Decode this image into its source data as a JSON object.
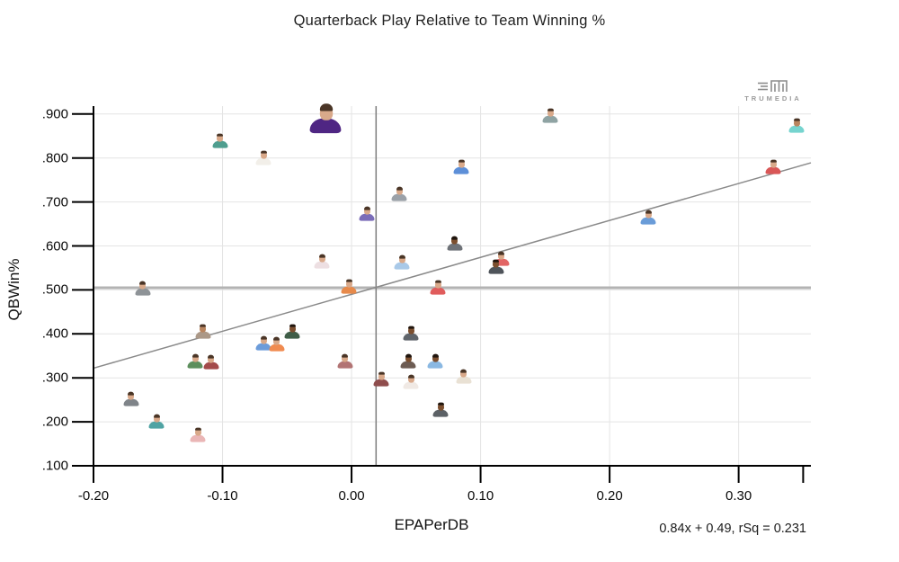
{
  "title": "Quarterback Play Relative to Team Winning %",
  "logo": {
    "text": "TRUMEDIA",
    "icon": "trumedia-mark-icon"
  },
  "chart_data": {
    "type": "scatter",
    "title": "Quarterback Play Relative to Team Winning %",
    "xlabel": "EPAPerDB",
    "ylabel": "QBWin%",
    "xlim": [
      -0.2,
      0.356
    ],
    "ylim": [
      0.1,
      0.918
    ],
    "grid": true,
    "x_ticks": [
      {
        "v": -0.2,
        "label": "-0.20"
      },
      {
        "v": -0.1,
        "label": "-0.10"
      },
      {
        "v": 0.0,
        "label": "0.00"
      },
      {
        "v": 0.1,
        "label": "0.10"
      },
      {
        "v": 0.2,
        "label": "0.20"
      },
      {
        "v": 0.3,
        "label": "0.30"
      },
      {
        "v": 0.35,
        "label": ""
      }
    ],
    "y_ticks": [
      {
        "v": 0.9,
        "label": ".900"
      },
      {
        "v": 0.8,
        "label": ".800"
      },
      {
        "v": 0.7,
        "label": ".700"
      },
      {
        "v": 0.6,
        "label": ".600"
      },
      {
        "v": 0.5,
        "label": ".500"
      },
      {
        "v": 0.4,
        "label": ".400"
      },
      {
        "v": 0.3,
        "label": ".300"
      },
      {
        "v": 0.2,
        "label": ".200"
      },
      {
        "v": 0.1,
        "label": ".100"
      }
    ],
    "reference_lines": {
      "mean_qbwin": 0.505,
      "mean_epaperdb": 0.019
    },
    "trend": {
      "slope": 0.84,
      "intercept": 0.49,
      "rsq": 0.231,
      "equation": "0.84x + 0.49, rSq = 0.231"
    },
    "marker": "player-headshot-avatar",
    "points": [
      {
        "x": -0.02,
        "y": 0.888,
        "jersey": "#4F2683",
        "skin": "#d9a98a",
        "big": true,
        "highlight": true
      },
      {
        "x": 0.154,
        "y": 0.894,
        "jersey": "#8fa3a3",
        "skin": "#d9a98a"
      },
      {
        "x": 0.345,
        "y": 0.871,
        "jersey": "#76d4cf",
        "skin": "#b9855f"
      },
      {
        "x": -0.102,
        "y": 0.837,
        "jersey": "#4f9e8f",
        "skin": "#d9a98a"
      },
      {
        "x": -0.068,
        "y": 0.798,
        "jersey": "#f2efe9",
        "skin": "#d9a98a"
      },
      {
        "x": 0.327,
        "y": 0.777,
        "jersey": "#d95757",
        "skin": "#d9a98a"
      },
      {
        "x": 0.085,
        "y": 0.777,
        "jersey": "#5d8fd8",
        "skin": "#d9a98a"
      },
      {
        "x": 0.037,
        "y": 0.715,
        "jersey": "#9ba1a8",
        "skin": "#d9a98a"
      },
      {
        "x": 0.012,
        "y": 0.67,
        "jersey": "#7a6cb8",
        "skin": "#d9a98a"
      },
      {
        "x": 0.23,
        "y": 0.662,
        "jersey": "#6a9cd8",
        "skin": "#d9a98a"
      },
      {
        "x": 0.08,
        "y": 0.603,
        "jersey": "#6e7278",
        "skin": "#7c4f2f"
      },
      {
        "x": -0.023,
        "y": 0.562,
        "jersey": "#eddfe2",
        "skin": "#d9a98a"
      },
      {
        "x": 0.039,
        "y": 0.56,
        "jersey": "#a9c9e8",
        "skin": "#d9a98a"
      },
      {
        "x": 0.116,
        "y": 0.568,
        "jersey": "#e26565",
        "skin": "#d9a98a"
      },
      {
        "x": 0.112,
        "y": 0.55,
        "jersey": "#4f545a",
        "skin": "#7c4f2f"
      },
      {
        "x": -0.162,
        "y": 0.5,
        "jersey": "#8e9397",
        "skin": "#d9a98a"
      },
      {
        "x": -0.002,
        "y": 0.505,
        "jersey": "#e78a4b",
        "skin": "#d9a98a"
      },
      {
        "x": 0.067,
        "y": 0.503,
        "jersey": "#e05c5c",
        "skin": "#d9a98a"
      },
      {
        "x": -0.115,
        "y": 0.403,
        "jersey": "#ab9887",
        "skin": "#b9855f"
      },
      {
        "x": -0.046,
        "y": 0.403,
        "jersey": "#3f5d47",
        "skin": "#7c4f2f"
      },
      {
        "x": 0.046,
        "y": 0.399,
        "jersey": "#5f646a",
        "skin": "#7c4f2f"
      },
      {
        "x": -0.068,
        "y": 0.376,
        "jersey": "#6c9cda",
        "skin": "#d9a98a"
      },
      {
        "x": -0.058,
        "y": 0.374,
        "jersey": "#f08b50",
        "skin": "#d9a98a"
      },
      {
        "x": -0.005,
        "y": 0.335,
        "jersey": "#b27474",
        "skin": "#d9a98a"
      },
      {
        "x": -0.121,
        "y": 0.335,
        "jersey": "#5d8f5d",
        "skin": "#d9a98a"
      },
      {
        "x": -0.109,
        "y": 0.333,
        "jersey": "#a34b4b",
        "skin": "#d9a98a"
      },
      {
        "x": 0.044,
        "y": 0.335,
        "jersey": "#6d5c53",
        "skin": "#7c4f2f"
      },
      {
        "x": 0.065,
        "y": 0.335,
        "jersey": "#8ab8e2",
        "skin": "#7c4f2f"
      },
      {
        "x": 0.023,
        "y": 0.295,
        "jersey": "#8f4d4d",
        "skin": "#d9a98a"
      },
      {
        "x": 0.046,
        "y": 0.288,
        "jersey": "#f0e9e4",
        "skin": "#d9a98a"
      },
      {
        "x": 0.087,
        "y": 0.3,
        "jersey": "#e9e1d4",
        "skin": "#d9a98a"
      },
      {
        "x": 0.069,
        "y": 0.225,
        "jersey": "#5c6166",
        "skin": "#7c4f2f"
      },
      {
        "x": -0.171,
        "y": 0.249,
        "jersey": "#7f8489",
        "skin": "#d9a98a"
      },
      {
        "x": -0.151,
        "y": 0.198,
        "jersey": "#4fa3a3",
        "skin": "#d9a98a"
      },
      {
        "x": -0.119,
        "y": 0.168,
        "jersey": "#eab6b6",
        "skin": "#d9a98a"
      }
    ],
    "colors": {
      "gridline": "#e4e4e4",
      "axis": "#000000",
      "mean_line_horizontal": "#b3b3b3",
      "mean_line_vertical": "#7d7d7d",
      "trend_line": "#8a8a8a",
      "logo_gray": "#8c8c8c"
    }
  }
}
